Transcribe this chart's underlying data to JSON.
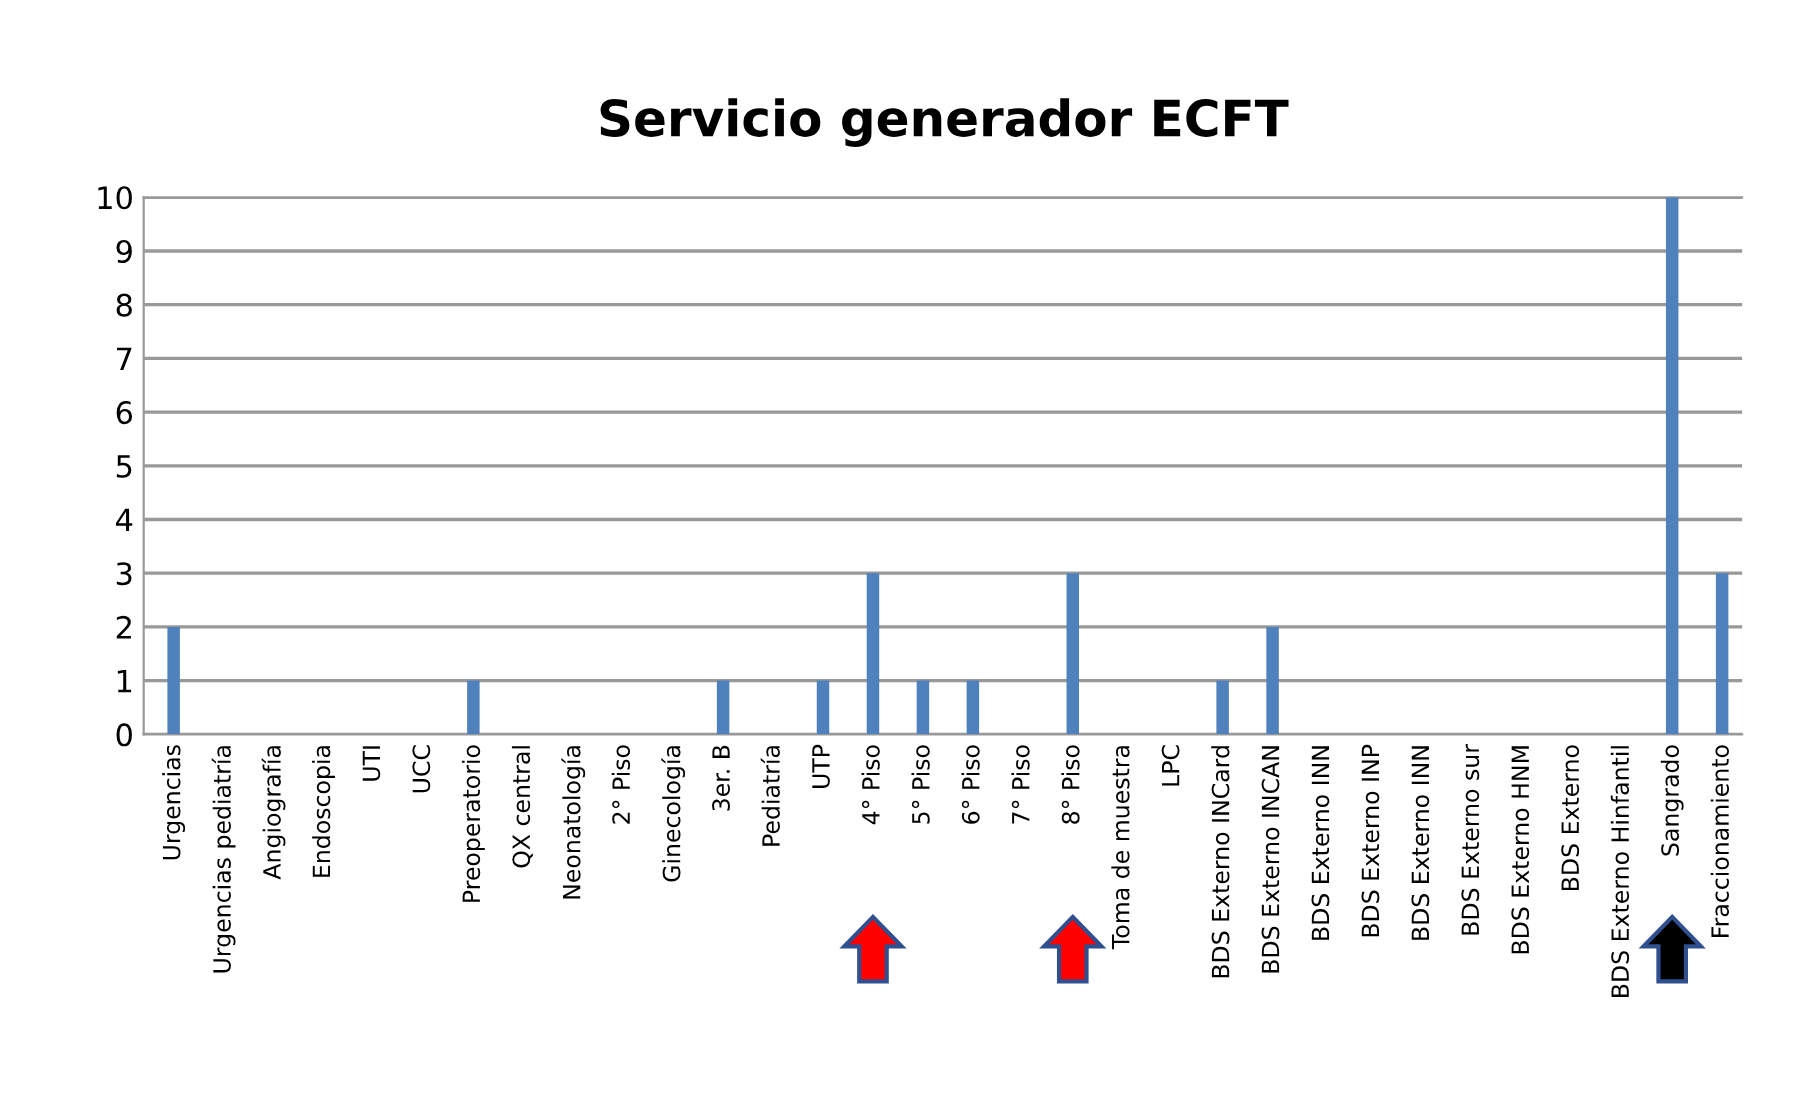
{
  "chart_data": {
    "type": "bar",
    "title": "Servicio generador ECFT",
    "categories": [
      "Urgencias",
      "Urgencias pediatría",
      "Angiografía",
      "Endoscopia",
      "UTI",
      "UCC",
      "Preoperatorio",
      "QX central",
      "Neonatología",
      "2° Piso",
      "Ginecología",
      "3er. B",
      "Pediatría",
      "UTP",
      "4° Piso",
      "5° Piso",
      "6° Piso",
      "7° Piso",
      "8° Piso",
      "Toma de muestra",
      "LPC",
      "BDS Externo INCard",
      "BDS Externo INCAN",
      "BDS Externo INN",
      "BDS Externo INP",
      "BDS Externo INN",
      "BDS Externo sur",
      "BDS Externo HNM",
      "BDS Externo",
      "BDS Externo Hinfantil",
      "Sangrado",
      "Fraccionamiento"
    ],
    "values": [
      2,
      0,
      0,
      0,
      0,
      0,
      1,
      0,
      0,
      0,
      0,
      1,
      0,
      1,
      3,
      1,
      1,
      0,
      3,
      0,
      0,
      1,
      2,
      0,
      0,
      0,
      0,
      0,
      0,
      0,
      10,
      3
    ],
    "color": "#4f81bd",
    "ylim": [
      0,
      10
    ],
    "yticks": [
      0,
      1,
      2,
      3,
      4,
      5,
      6,
      7,
      8,
      9,
      10
    ],
    "grid": "y"
  }
}
